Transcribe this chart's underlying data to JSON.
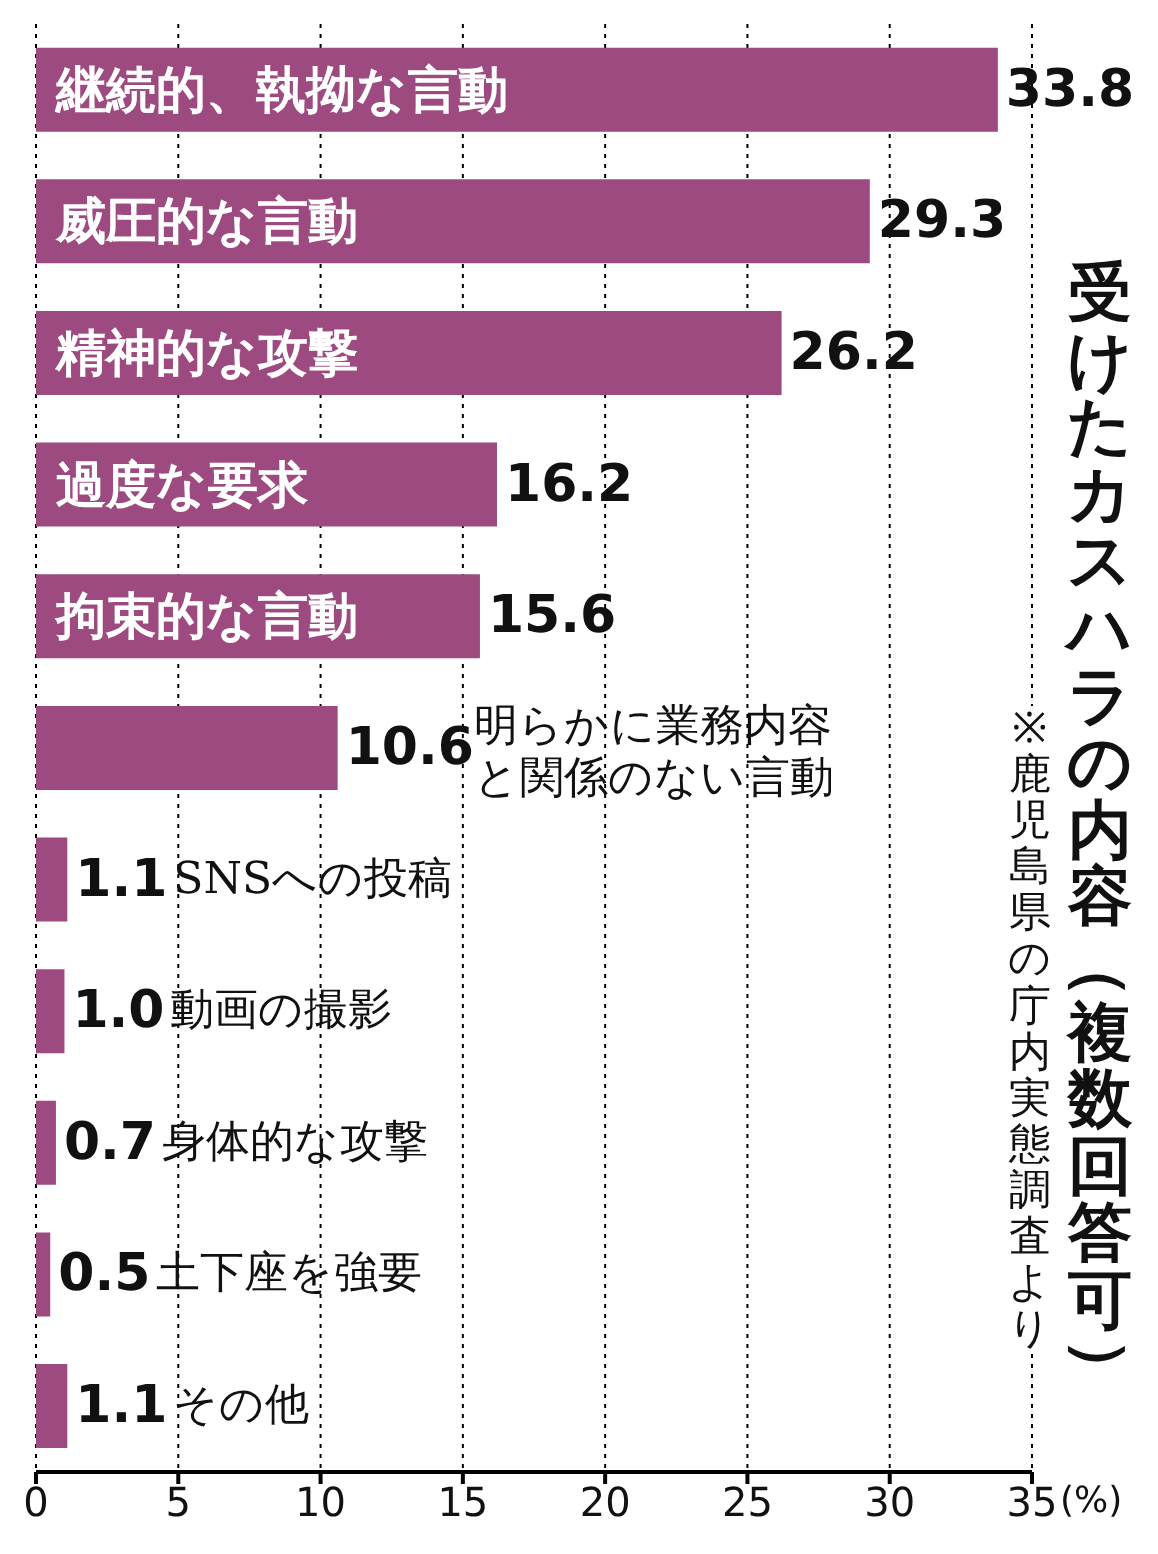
{
  "chart_data": {
    "type": "bar",
    "orientation": "horizontal",
    "title": "受けたカスハラの内容（複数回答可）",
    "xlabel": "(%)",
    "annotations": [
      "※鹿児島県の庁内実態調査より"
    ],
    "categories": [
      "継続的、執拗な言動",
      "威圧的な言動",
      "精神的な攻撃",
      "過度な要求",
      "拘束的な言動",
      "明らかに業務内容と関係のない言動",
      "SNSへの投稿",
      "動画の撮影",
      "身体的な攻撃",
      "土下座を強要",
      "その他"
    ],
    "values": [
      33.8,
      29.3,
      26.2,
      16.2,
      15.6,
      10.6,
      1.1,
      1.0,
      0.7,
      0.5,
      1.1
    ],
    "value_labels": [
      "33.8",
      "29.3",
      "26.2",
      "16.2",
      "15.6",
      "10.6",
      "1.1",
      "1.0",
      "0.7",
      "0.5",
      "1.1"
    ],
    "color": "#9c4a7f",
    "xlim": [
      0,
      35
    ],
    "xticks": [
      0,
      5,
      10,
      15,
      20,
      25,
      30,
      35
    ],
    "grid": "x",
    "tick_labels": "x"
  }
}
